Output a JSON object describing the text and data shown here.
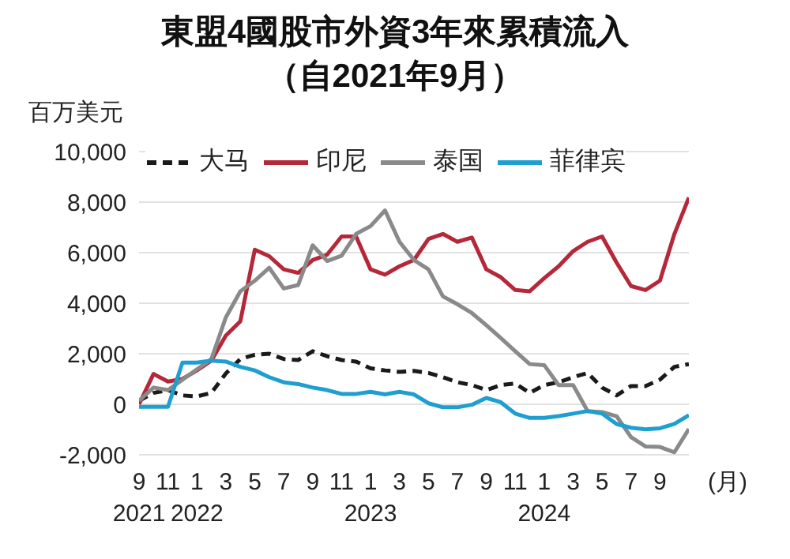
{
  "chart_data": {
    "type": "line",
    "title": "東盟4國股市外資3年來累積流入",
    "subtitle": "（自2021年9月）",
    "ylabel": "百万美元",
    "xlabel": "(月)",
    "categories": [
      "9\n2021",
      null,
      "11",
      null,
      "1\n2022",
      null,
      "3",
      null,
      "5",
      null,
      "7",
      null,
      "9",
      null,
      "11",
      null,
      "1\n2023",
      null,
      "3",
      null,
      "5",
      null,
      "7",
      null,
      "9",
      null,
      "11",
      null,
      "1\n2024",
      null,
      "3",
      null,
      "5",
      null,
      "7",
      null,
      "9",
      null,
      null
    ],
    "series": [
      {
        "name": "大马",
        "color": "#1a1a1a",
        "line_style": "dashed",
        "values": [
          140,
          450,
          560,
          350,
          310,
          450,
          1220,
          1790,
          1960,
          2000,
          1790,
          1750,
          2100,
          1900,
          1750,
          1690,
          1420,
          1340,
          1280,
          1320,
          1240,
          1070,
          870,
          760,
          560,
          760,
          820,
          450,
          760,
          870,
          1070,
          1240,
          660,
          350,
          720,
          720,
          970,
          1480,
          1590
        ]
      },
      {
        "name": "印尼",
        "color": "#b5283a",
        "values": [
          0,
          1200,
          900,
          1000,
          1340,
          1730,
          2720,
          3280,
          6120,
          5860,
          5340,
          5200,
          5710,
          5920,
          6640,
          6640,
          5340,
          5130,
          5460,
          5710,
          6540,
          6740,
          6430,
          6600,
          5340,
          5030,
          4520,
          4470,
          4990,
          5460,
          6060,
          6430,
          6640,
          5610,
          4680,
          4520,
          4890,
          6740,
          8180
        ]
      },
      {
        "name": "泰国",
        "color": "#8a8a8a",
        "values": [
          140,
          660,
          560,
          970,
          1380,
          1790,
          3440,
          4470,
          4890,
          5400,
          4580,
          4720,
          6290,
          5670,
          5880,
          6740,
          7050,
          7670,
          6430,
          5710,
          5340,
          4270,
          3960,
          3610,
          3130,
          2620,
          2100,
          1590,
          1550,
          760,
          760,
          -270,
          -310,
          -470,
          -1300,
          -1670,
          -1690,
          -1900,
          -980
        ]
      },
      {
        "name": "菲律宾",
        "color": "#1f9fd0",
        "values": [
          -100,
          -100,
          -100,
          1650,
          1650,
          1730,
          1690,
          1480,
          1340,
          1070,
          870,
          800,
          660,
          560,
          410,
          410,
          490,
          390,
          490,
          390,
          40,
          -120,
          -120,
          -20,
          250,
          80,
          -370,
          -540,
          -540,
          -470,
          -370,
          -270,
          -370,
          -780,
          -930,
          -990,
          -950,
          -780,
          -430
        ]
      }
    ],
    "ylim": [
      -2000,
      10000
    ],
    "yticks": [
      {
        "value": -2000,
        "label": "-2,000"
      },
      0,
      {
        "value": 2000,
        "label": "2,000"
      },
      {
        "value": 4000,
        "label": "4,000"
      },
      {
        "value": 6000,
        "label": "6,000"
      },
      {
        "value": 8000,
        "label": "8,000"
      },
      {
        "value": 10000,
        "label": "10,000"
      }
    ],
    "grid": "y",
    "legend": "top",
    "marker": "none",
    "line_style": "solid"
  }
}
